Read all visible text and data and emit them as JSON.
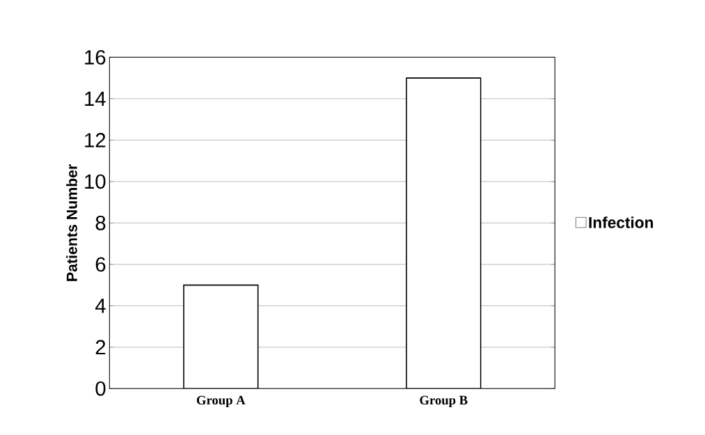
{
  "chart_data": {
    "type": "bar",
    "ylabel": "Patients Number",
    "categories": [
      "Group A",
      "Group B"
    ],
    "series": [
      {
        "name": "Infection",
        "color": "#ffffff",
        "values": [
          5,
          15
        ]
      }
    ],
    "ylim": [
      0,
      16
    ],
    "yticks": [
      0,
      2,
      4,
      6,
      8,
      10,
      12,
      14,
      16
    ],
    "grid": "y",
    "legend": "right"
  }
}
